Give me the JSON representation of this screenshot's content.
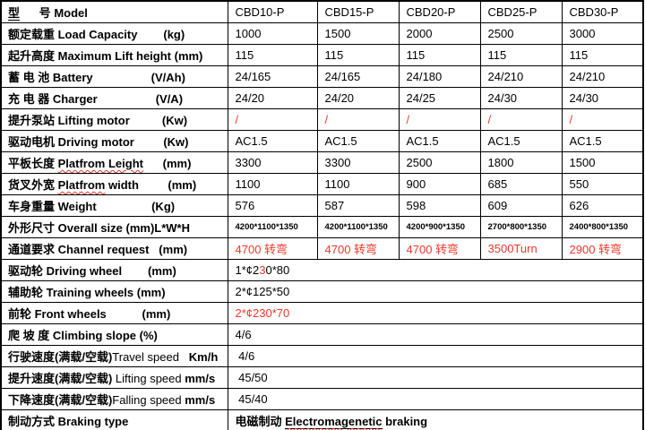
{
  "colors": {
    "background": "#ffffff",
    "border": "#000000",
    "text": "#000000",
    "red_accent": "#ee372a",
    "spellcheck_wavy": "#e0372a"
  },
  "table": {
    "rows": [
      {
        "id": "model",
        "label": [
          {
            "t": "型",
            "u": 1
          },
          {
            "t": "      号 "
          },
          {
            "t": "Model"
          }
        ],
        "values": [
          "CBD10-P",
          "CBD15-P",
          "CBD20-P",
          "CBD25-P",
          "CBD30-P"
        ]
      },
      {
        "id": "load-capacity",
        "label": [
          {
            "t": "额定载重 Load Capacity        (kg)"
          }
        ],
        "values": [
          "1000",
          "1500",
          "2000",
          "2500",
          "3000"
        ]
      },
      {
        "id": "max-lift-height",
        "label": [
          {
            "t": "起升高度 Maximum Lift height (mm)"
          }
        ],
        "values": [
          "115",
          "115",
          "115",
          "115",
          "115"
        ]
      },
      {
        "id": "battery",
        "label": [
          {
            "t": "蓄 电 池 Battery                  (V/Ah)"
          }
        ],
        "values": [
          "24/165",
          "24/165",
          "24/180",
          "24/210",
          "24/210"
        ]
      },
      {
        "id": "charger",
        "label": [
          {
            "t": "充 电 器 Charger                  (V/A)"
          }
        ],
        "values": [
          "24/20",
          "24/20",
          "24/25",
          "24/30",
          "24/30"
        ]
      },
      {
        "id": "lifting-motor",
        "label": [
          {
            "t": "提升泵站 Lifting motor          (Kw)"
          }
        ],
        "values": [
          "/",
          "/",
          "/",
          "/",
          "/"
        ],
        "vclass": "red"
      },
      {
        "id": "driving-motor",
        "label": [
          {
            "t": "驱动电机 Driving motor         (Kw)"
          }
        ],
        "values": [
          "AC1.5",
          "AC1.5",
          "AC1.5",
          "AC1.5",
          "AC1.5"
        ]
      },
      {
        "id": "platform-length",
        "label": [
          {
            "t": "平板长度 "
          },
          {
            "t": "Platfrom Leight",
            "w": 1
          },
          {
            "t": "      (mm)"
          }
        ],
        "values": [
          "3300",
          "3300",
          "2500",
          "1800",
          "1500"
        ]
      },
      {
        "id": "platform-width",
        "label": [
          {
            "t": "货叉外宽 "
          },
          {
            "t": "Platfrom",
            "w": 1
          },
          {
            "t": " width         (mm)"
          }
        ],
        "values": [
          "1100",
          "1100",
          "900",
          "685",
          "550"
        ]
      },
      {
        "id": "weight",
        "label": [
          {
            "t": "车身重量 Weight                 (Kg)"
          }
        ],
        "values": [
          "576",
          "587",
          "598",
          "609",
          "626"
        ]
      },
      {
        "id": "overall-size",
        "label": [
          {
            "t": "外形尺寸 Overall size (mm)L*W*H"
          }
        ],
        "values": [
          "4200*1100*1350",
          "4200*1100*1350",
          "4200*900*1350",
          "2700*800*1350",
          "2400*800*1350"
        ],
        "vclass": "small"
      },
      {
        "id": "channel-request",
        "label": [
          {
            "t": "通道要求 Channel request   (mm)"
          }
        ],
        "values": [
          "4700 转弯",
          "4700 转弯",
          "4700 转弯",
          "3500Turn",
          "2900 转弯"
        ],
        "vclass": "red"
      },
      {
        "id": "driving-wheel",
        "label": [
          {
            "t": "驱动轮 Driving wheel        (mm)"
          }
        ],
        "merged": [
          {
            "t": "1*¢2"
          },
          {
            "t": "3",
            "c": 1
          },
          {
            "t": "0*80"
          }
        ]
      },
      {
        "id": "training-wheels",
        "label": [
          {
            "t": "辅助轮 Training wheels (mm)"
          }
        ],
        "merged": [
          {
            "t": "2*¢125*50"
          }
        ]
      },
      {
        "id": "front-wheels",
        "label": [
          {
            "t": "前轮 Front wheels           (mm)"
          }
        ],
        "merged": [
          {
            "t": "2*¢230*70",
            "c": 1
          }
        ]
      },
      {
        "id": "climbing-slope",
        "label": [
          {
            "t": "爬 坡 度 Climbing slope (%)"
          }
        ],
        "merged": [
          {
            "t": "4/6"
          }
        ]
      },
      {
        "id": "travel-speed",
        "label": [
          {
            "t": "行驶速度(满载/空载)"
          },
          {
            "t": "Travel speed",
            "light": 1
          },
          {
            "t": "   Km/h"
          }
        ],
        "merged": [
          {
            "t": " 4/6"
          }
        ]
      },
      {
        "id": "lifting-speed",
        "label": [
          {
            "t": "提升速度(满载/空载)"
          },
          {
            "t": " Lifting speed ",
            "light": 1
          },
          {
            "t": "mm/s"
          }
        ],
        "merged": [
          {
            "t": " 45/50"
          }
        ]
      },
      {
        "id": "falling-speed",
        "label": [
          {
            "t": "下降速度(满载/空载)"
          },
          {
            "t": "Falling speed ",
            "light": 1
          },
          {
            "t": "mm/s"
          }
        ],
        "merged": [
          {
            "t": " 45/40"
          }
        ]
      },
      {
        "id": "braking-type",
        "label": [
          {
            "t": "制动方式 Braking type"
          }
        ],
        "merged": [
          {
            "t": "电磁制动 ",
            "b": 1
          },
          {
            "t": "Electromagenetic",
            "b": 1,
            "u": 1,
            "w": 1
          },
          {
            "t": " braking",
            "b": 1
          }
        ]
      }
    ]
  }
}
